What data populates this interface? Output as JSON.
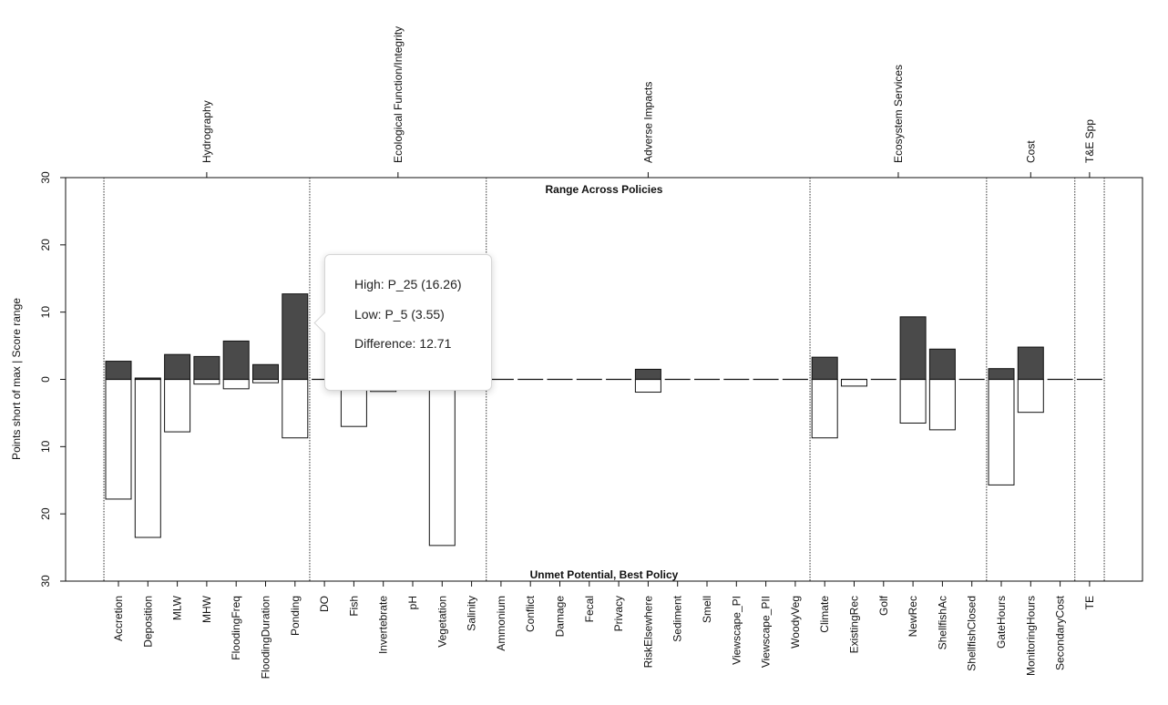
{
  "chart_data": {
    "type": "bar",
    "top_label": "Range Across Policies",
    "bottom_label": "Unmet Potential, Best Policy",
    "ylabel": "Points short of max | Score range",
    "ylim": [
      -30,
      30
    ],
    "yticks": [
      30,
      20,
      10,
      0,
      10,
      20,
      30
    ],
    "categories": [
      "Accretion",
      "Deposition",
      "MLW",
      "MHW",
      "FloodingFreq",
      "FloodingDuration",
      "Ponding",
      "DO",
      "Fish",
      "Invertebrate",
      "pH",
      "Vegetation",
      "Salinity",
      "Ammonium",
      "Conflict",
      "Damage",
      "Fecal",
      "Privacy",
      "RiskElsewhere",
      "Sediment",
      "Smell",
      "Viewscape_PI",
      "Viewscape_PII",
      "WoodyVeg",
      "Climate",
      "ExistingRec",
      "Golf",
      "NewRec",
      "ShellfishAc",
      "ShellfishClosed",
      "GateHours",
      "MonitoringHours",
      "SecondaryCost",
      "TE"
    ],
    "series": [
      {
        "name": "Range Across Policies",
        "values": [
          2.7,
          0.2,
          3.7,
          3.4,
          5.7,
          2.2,
          12.71,
          0,
          0,
          0,
          0,
          0,
          0,
          0,
          0,
          0,
          0,
          0,
          1.5,
          0,
          0,
          0,
          0,
          0,
          3.3,
          0,
          0,
          9.3,
          4.5,
          0,
          1.6,
          4.8,
          0,
          0
        ]
      },
      {
        "name": "Unmet Potential, Best Policy",
        "values": [
          17.8,
          23.5,
          7.8,
          0.7,
          1.4,
          0.5,
          8.7,
          0,
          7.0,
          1.8,
          0,
          24.7,
          0,
          0,
          0,
          0,
          0,
          0,
          1.9,
          0,
          0,
          0,
          0,
          0,
          8.7,
          1.0,
          0,
          6.5,
          7.5,
          0,
          15.7,
          4.9,
          0,
          0
        ]
      }
    ],
    "groups": [
      {
        "name": "Hydrography",
        "start": 0,
        "end": 6
      },
      {
        "name": "Ecological Function/Integrity",
        "start": 7,
        "end": 12
      },
      {
        "name": "Adverse Impacts",
        "start": 13,
        "end": 23
      },
      {
        "name": "Ecosystem Services",
        "start": 24,
        "end": 29
      },
      {
        "name": "Cost",
        "start": 30,
        "end": 32
      },
      {
        "name": "T&E Spp",
        "start": 33,
        "end": 33
      }
    ],
    "colors": {
      "range": "#4a4a4a",
      "unmet": "#ffffff",
      "outline": "#111111"
    }
  },
  "tooltip": {
    "high": "High: P_25 (16.26)",
    "low": "Low: P_5 (3.55)",
    "difference": "Difference: 12.71"
  }
}
